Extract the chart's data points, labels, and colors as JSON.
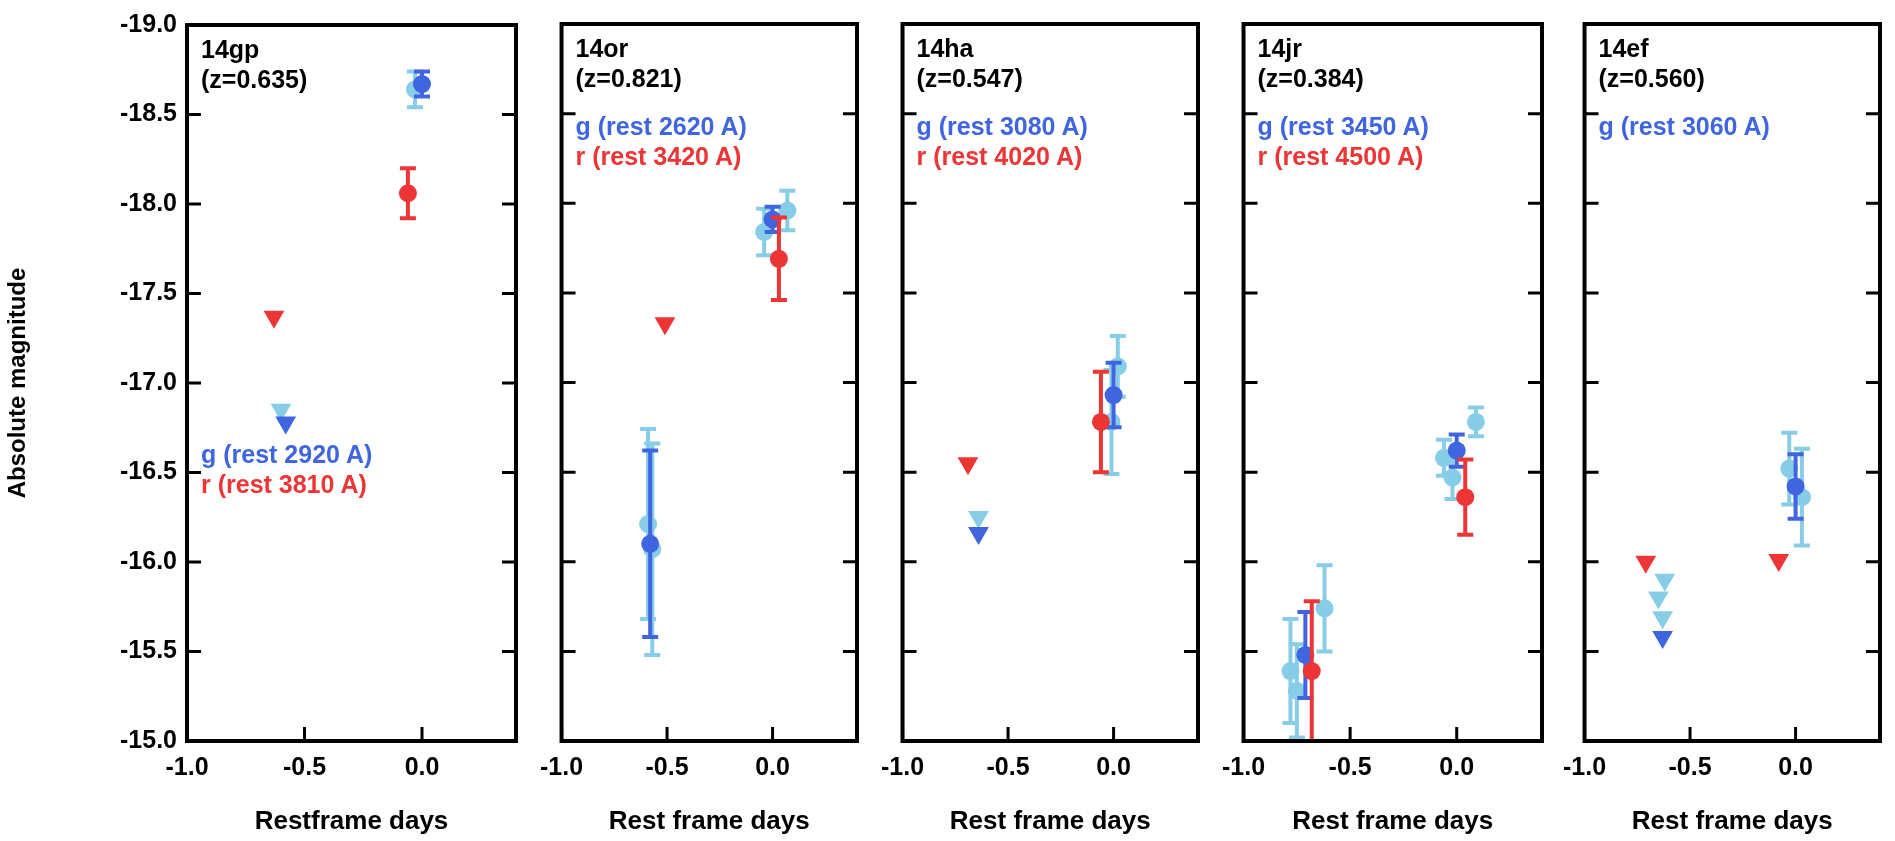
{
  "chart_data": [
    {
      "type": "scatter",
      "title": "14gp",
      "subtitle": "(z=0.635)",
      "xlabel": "Restframe days",
      "ylabel": "Absolute magnitude",
      "legend": "left",
      "xlim": [
        -1.0,
        0.4
      ],
      "ylim": [
        -15.0,
        -19.0
      ],
      "xticks": [
        {
          "value": -1.0,
          "label": "-1.0"
        },
        {
          "value": -0.5,
          "label": "-0.5"
        },
        {
          "value": 0,
          "label": "0.0"
        }
      ],
      "yticks": [
        {
          "value": -19,
          "label": "-19.0"
        },
        {
          "value": -18.5,
          "label": "-18.5"
        },
        {
          "value": -18,
          "label": "-18.0"
        },
        {
          "value": -17.5,
          "label": "-17.5"
        },
        {
          "value": -17,
          "label": "-17.0"
        },
        {
          "value": -16.5,
          "label": "-16.5"
        },
        {
          "value": -16,
          "label": "-16.0"
        },
        {
          "value": -15.5,
          "label": "-15.5"
        },
        {
          "value": -15,
          "label": "-15.0"
        }
      ],
      "series": [
        {
          "color": "#ee3535",
          "marker": "triangle",
          "x": [
            -0.63
          ],
          "values": [
            -17.37
          ]
        },
        {
          "color": "#87cde8",
          "marker": "triangle",
          "x": [
            -0.6
          ],
          "values": [
            -16.85
          ]
        },
        {
          "color": "#3f66e0",
          "marker": "triangle",
          "x": [
            -0.58
          ],
          "values": [
            -16.78
          ]
        },
        {
          "color": "#87cde8",
          "marker": "circle",
          "x": [
            -0.03
          ],
          "values": [
            -18.64
          ],
          "errors": [
            0.1
          ]
        },
        {
          "name": "g (rest 2920 A)",
          "color": "#3f66e0",
          "marker": "circle",
          "x": [
            0
          ],
          "values": [
            -18.67
          ],
          "errors": [
            0.07
          ]
        },
        {
          "name": "r (rest 3810 A)",
          "color": "#ee3535",
          "marker": "circle",
          "x": [
            -0.06
          ],
          "values": [
            -18.06
          ],
          "errors": [
            0.14
          ]
        }
      ]
    },
    {
      "type": "scatter",
      "title": "14or",
      "subtitle": "(z=0.821)",
      "xlabel": "Rest frame days",
      "legend": "top left",
      "tick_labels": "x",
      "xlim": [
        -1.0,
        0.4
      ],
      "ylim": [
        -15.0,
        -19.0
      ],
      "xticks": [
        {
          "value": -1.0,
          "label": "-1.0"
        },
        {
          "value": -0.5,
          "label": "-0.5"
        },
        {
          "value": 0,
          "label": "0.0"
        }
      ],
      "yticks": [
        -19,
        -18.5,
        -18,
        -17.5,
        -17,
        -16.5,
        -16,
        -15.5,
        -15
      ],
      "series": [
        {
          "color": "#ee3535",
          "marker": "triangle",
          "x": [
            -0.51
          ],
          "values": [
            -17.33
          ]
        },
        {
          "color": "#87cde8",
          "marker": "circle",
          "x": [
            -0.59,
            -0.57,
            -0.04,
            0.07
          ],
          "values": [
            -16.21,
            -16.07,
            -17.84,
            -17.96
          ],
          "errors": [
            0.53,
            0.59,
            0.13,
            0.11
          ]
        },
        {
          "name": "g (rest 2620 A)",
          "color": "#3f66e0",
          "marker": "circle",
          "x": [
            -0.58,
            0
          ],
          "values": [
            -16.1,
            -17.91
          ],
          "errors": [
            0.52,
            0.07
          ]
        },
        {
          "name": "r (rest 3420 A)",
          "color": "#ee3535",
          "marker": "circle",
          "x": [
            0.03
          ],
          "values": [
            -17.69
          ],
          "errors": [
            0.23
          ]
        }
      ]
    },
    {
      "type": "scatter",
      "title": "14ha",
      "subtitle": "(z=0.547)",
      "xlabel": "Rest frame days",
      "legend": "top left",
      "tick_labels": "x",
      "xlim": [
        -1.0,
        0.4
      ],
      "ylim": [
        -15.0,
        -19.0
      ],
      "xticks": [
        {
          "value": -1.0,
          "label": "-1.0"
        },
        {
          "value": -0.5,
          "label": "-0.5"
        },
        {
          "value": 0,
          "label": "0.0"
        }
      ],
      "yticks": [
        -19,
        -18.5,
        -18,
        -17.5,
        -17,
        -16.5,
        -16,
        -15.5,
        -15
      ],
      "series": [
        {
          "color": "#ee3535",
          "marker": "triangle",
          "x": [
            -0.69
          ],
          "values": [
            -16.55
          ]
        },
        {
          "color": "#87cde8",
          "marker": "triangle",
          "x": [
            -0.64
          ],
          "values": [
            -16.25
          ]
        },
        {
          "color": "#3f66e0",
          "marker": "triangle",
          "x": [
            -0.64
          ],
          "values": [
            -16.16
          ]
        },
        {
          "color": "#87cde8",
          "marker": "circle",
          "x": [
            -0.01,
            0.02
          ],
          "values": [
            -16.78,
            -17.09
          ],
          "errors": [
            0.29,
            0.17
          ]
        },
        {
          "name": "g (rest 3080 A)",
          "color": "#3f66e0",
          "marker": "circle",
          "x": [
            0
          ],
          "values": [
            -16.93
          ],
          "errors": [
            0.18
          ]
        },
        {
          "name": "r (rest 4020 A)",
          "color": "#ee3535",
          "marker": "circle",
          "x": [
            -0.06
          ],
          "values": [
            -16.78
          ],
          "errors": [
            0.28
          ]
        }
      ]
    },
    {
      "type": "scatter",
      "title": "14jr",
      "subtitle": "(z=0.384)",
      "xlabel": "Rest frame days",
      "legend": "top left",
      "tick_labels": "x",
      "xlim": [
        -1.0,
        0.4
      ],
      "ylim": [
        -15.0,
        -19.0
      ],
      "xticks": [
        {
          "value": -1.0,
          "label": "-1.0"
        },
        {
          "value": -0.5,
          "label": "-0.5"
        },
        {
          "value": 0,
          "label": "0.0"
        }
      ],
      "yticks": [
        -19,
        -18.5,
        -18,
        -17.5,
        -17,
        -16.5,
        -16,
        -15.5,
        -15
      ],
      "series": [
        {
          "color": "#87cde8",
          "marker": "circle",
          "x": [
            -0.78,
            -0.75,
            -0.62,
            -0.06,
            -0.02,
            0.09
          ],
          "values": [
            -15.39,
            -15.28,
            -15.74,
            -16.58,
            -16.47,
            -16.78
          ],
          "errors": [
            0.29,
            0.26,
            0.24,
            0.1,
            0.12,
            0.08
          ]
        },
        {
          "name": "g (rest 3450 A)",
          "color": "#3f66e0",
          "marker": "circle",
          "x": [
            -0.71,
            0
          ],
          "values": [
            -15.48,
            -16.62
          ],
          "errors": [
            0.24,
            0.09
          ]
        },
        {
          "name": "r (rest 4500 A)",
          "color": "#ee3535",
          "marker": "circle",
          "x": [
            -0.68,
            0.04
          ],
          "values": [
            -15.39,
            -16.36
          ],
          "errors": [
            0.39,
            0.21
          ]
        }
      ]
    },
    {
      "type": "scatter",
      "title": "14ef",
      "subtitle": "(z=0.560)",
      "xlabel": "Rest frame days",
      "legend": "top left",
      "tick_labels": "x",
      "xlim": [
        -1.0,
        0.4
      ],
      "ylim": [
        -15.0,
        -19.0
      ],
      "xticks": [
        {
          "value": -1.0,
          "label": "-1.0"
        },
        {
          "value": -0.5,
          "label": "-0.5"
        },
        {
          "value": 0,
          "label": "0.0"
        }
      ],
      "yticks": [
        -19,
        -18.5,
        -18,
        -17.5,
        -17,
        -16.5,
        -16,
        -15.5,
        -15
      ],
      "series": [
        {
          "color": "#ee3535",
          "marker": "triangle",
          "x": [
            -0.71,
            -0.08
          ],
          "values": [
            -16.0,
            -16.01
          ]
        },
        {
          "color": "#87cde8",
          "marker": "triangle",
          "x": [
            -0.62,
            -0.65,
            -0.63
          ],
          "values": [
            -15.9,
            -15.8,
            -15.69
          ]
        },
        {
          "color": "#3f66e0",
          "marker": "triangle",
          "x": [
            -0.63
          ],
          "values": [
            -15.58
          ]
        },
        {
          "color": "#87cde8",
          "marker": "circle",
          "x": [
            -0.03,
            0.03
          ],
          "values": [
            -16.52,
            -16.36
          ],
          "errors": [
            0.2,
            0.27
          ]
        },
        {
          "name": "g (rest 3060 A)",
          "color": "#3f66e0",
          "marker": "circle",
          "x": [
            0
          ],
          "values": [
            -16.42
          ],
          "errors": [
            0.18
          ]
        }
      ]
    }
  ]
}
